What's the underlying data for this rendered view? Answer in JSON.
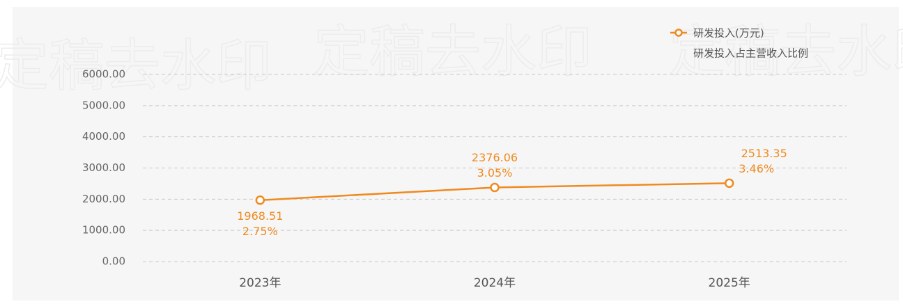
{
  "chart_data": {
    "type": "line",
    "watermark": "定稿去水印",
    "categories": [
      "2023年",
      "2024年",
      "2025年"
    ],
    "series": [
      {
        "name": "研发投入(万元)",
        "color": "#ef8a1f",
        "values": [
          1968.51,
          2376.06,
          2513.35
        ]
      },
      {
        "name": "研发投入占主营收入比例",
        "color": "#ef8a1f",
        "values": [
          2.75,
          3.05,
          3.46
        ],
        "value_labels": [
          "2.75%",
          "3.05%",
          "3.46%"
        ]
      }
    ],
    "ylim": [
      0,
      6000
    ],
    "yticks": [
      {
        "value": 0,
        "label": "0.00"
      },
      {
        "value": 1000,
        "label": "1000.00"
      },
      {
        "value": 2000,
        "label": "2000.00"
      },
      {
        "value": 3000,
        "label": "3000.00"
      },
      {
        "value": 4000,
        "label": "4000.00"
      },
      {
        "value": 5000,
        "label": "5000.00"
      },
      {
        "value": 6000,
        "label": "6000.00"
      }
    ],
    "grid": true
  }
}
